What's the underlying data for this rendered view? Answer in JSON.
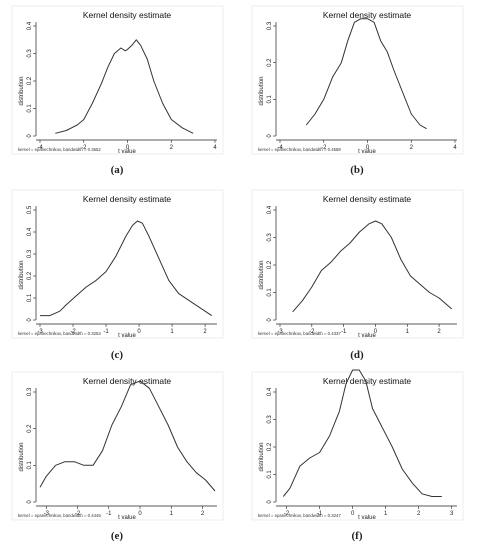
{
  "chart_data": [
    {
      "id": "a",
      "type": "line",
      "title": "Kernel density estimate",
      "xlabel": "t value",
      "ylabel": "distribution",
      "note": "kernel = epanechnikov, bandwidth = 0.3652",
      "xlim": [
        -4,
        4
      ],
      "ylim": [
        0,
        0.4
      ],
      "xticks": [
        -4,
        -2,
        0,
        2,
        4
      ],
      "yticks": [
        0,
        0.1,
        0.2,
        0.3,
        0.4
      ],
      "series": [
        {
          "x": [
            -3.3,
            -2.8,
            -2.3,
            -2.0,
            -1.6,
            -1.2,
            -0.9,
            -0.6,
            -0.3,
            -0.1,
            0.0,
            0.2,
            0.4,
            0.6,
            0.9,
            1.2,
            1.6,
            2.0,
            2.5,
            3.0
          ],
          "y": [
            0.01,
            0.02,
            0.04,
            0.06,
            0.12,
            0.19,
            0.25,
            0.3,
            0.32,
            0.31,
            0.315,
            0.33,
            0.35,
            0.33,
            0.28,
            0.2,
            0.12,
            0.06,
            0.03,
            0.01
          ]
        }
      ],
      "caption": "(a)"
    },
    {
      "id": "b",
      "type": "line",
      "title": "Kernel density estimate",
      "xlabel": "t value",
      "ylabel": "distribution",
      "note": "kernel = epanechnikov, bandwidth = 0.4588",
      "xlim": [
        -4,
        4
      ],
      "ylim": [
        0,
        0.3
      ],
      "xticks": [
        -4,
        -2,
        0,
        2,
        4
      ],
      "yticks": [
        0,
        0.1,
        0.2,
        0.3
      ],
      "series": [
        {
          "x": [
            -2.8,
            -2.4,
            -2.0,
            -1.6,
            -1.2,
            -0.9,
            -0.6,
            -0.3,
            0.0,
            0.3,
            0.6,
            0.9,
            1.2,
            1.6,
            2.0,
            2.4,
            2.7
          ],
          "y": [
            0.03,
            0.06,
            0.1,
            0.16,
            0.2,
            0.26,
            0.31,
            0.32,
            0.32,
            0.31,
            0.26,
            0.23,
            0.18,
            0.12,
            0.06,
            0.03,
            0.02
          ]
        }
      ],
      "caption": "(b)"
    },
    {
      "id": "c",
      "type": "line",
      "title": "Kernel density estimate",
      "xlabel": "t value",
      "ylabel": "distribution",
      "note": "kernel = epanechnikov, bandwidth = 0.3253",
      "xlim": [
        -3,
        2.3
      ],
      "ylim": [
        0,
        0.5
      ],
      "xticks": [
        -3,
        -2,
        -1,
        0,
        1,
        2
      ],
      "yticks": [
        0,
        0.1,
        0.2,
        0.3,
        0.4,
        0.5
      ],
      "series": [
        {
          "x": [
            -3.0,
            -2.7,
            -2.4,
            -2.2,
            -1.9,
            -1.6,
            -1.3,
            -1.0,
            -0.7,
            -0.4,
            -0.2,
            -0.05,
            0.1,
            0.3,
            0.6,
            0.9,
            1.2,
            1.5,
            1.8,
            2.2
          ],
          "y": [
            0.02,
            0.02,
            0.04,
            0.07,
            0.11,
            0.15,
            0.18,
            0.22,
            0.29,
            0.38,
            0.43,
            0.45,
            0.44,
            0.38,
            0.28,
            0.18,
            0.12,
            0.09,
            0.06,
            0.02
          ]
        }
      ],
      "caption": "(c)"
    },
    {
      "id": "d",
      "type": "line",
      "title": "Kernel density estimate",
      "xlabel": "t value",
      "ylabel": "distribution",
      "note": "kernel = epanechnikov, bandwidth = 0.4337",
      "xlim": [
        -3,
        2.5
      ],
      "ylim": [
        0,
        0.4
      ],
      "xticks": [
        -3,
        -2,
        -1,
        0,
        1,
        2
      ],
      "yticks": [
        0,
        0.1,
        0.2,
        0.3,
        0.4
      ],
      "series": [
        {
          "x": [
            -2.6,
            -2.3,
            -2.0,
            -1.7,
            -1.4,
            -1.1,
            -0.8,
            -0.5,
            -0.2,
            0.0,
            0.2,
            0.5,
            0.8,
            1.1,
            1.4,
            1.7,
            2.0,
            2.4
          ],
          "y": [
            0.03,
            0.07,
            0.12,
            0.18,
            0.21,
            0.25,
            0.28,
            0.32,
            0.35,
            0.36,
            0.35,
            0.3,
            0.22,
            0.16,
            0.13,
            0.1,
            0.08,
            0.04
          ]
        }
      ],
      "caption": "(d)"
    },
    {
      "id": "e",
      "type": "line",
      "title": "Kernel density estimate",
      "xlabel": "t value",
      "ylabel": "distribution",
      "note": "kernel = epanechnikov, bandwidth = 0.4445",
      "xlim": [
        -3.2,
        2.4
      ],
      "ylim": [
        0,
        0.3
      ],
      "xticks": [
        -3,
        -2,
        -1,
        0,
        1,
        2
      ],
      "yticks": [
        0,
        0.1,
        0.2,
        0.3
      ],
      "series": [
        {
          "x": [
            -3.2,
            -3.0,
            -2.7,
            -2.4,
            -2.1,
            -1.8,
            -1.5,
            -1.2,
            -0.9,
            -0.6,
            -0.3,
            0.0,
            0.3,
            0.6,
            0.9,
            1.2,
            1.5,
            1.8,
            2.1,
            2.4
          ],
          "y": [
            0.04,
            0.07,
            0.1,
            0.11,
            0.11,
            0.1,
            0.1,
            0.14,
            0.21,
            0.26,
            0.32,
            0.33,
            0.31,
            0.26,
            0.21,
            0.15,
            0.11,
            0.08,
            0.06,
            0.03
          ]
        }
      ],
      "caption": "(e)"
    },
    {
      "id": "f",
      "type": "line",
      "title": "Kernel density estimate",
      "xlabel": "t value",
      "ylabel": "distribution",
      "note": "kernel = epanechnikov, bandwidth = 0.3247",
      "xlim": [
        -2.2,
        3.1
      ],
      "ylim": [
        0,
        0.4
      ],
      "xticks": [
        -2,
        -1,
        0,
        1,
        2,
        3
      ],
      "yticks": [
        0,
        0.1,
        0.2,
        0.3,
        0.4
      ],
      "series": [
        {
          "x": [
            -2.1,
            -1.9,
            -1.6,
            -1.3,
            -1.0,
            -0.7,
            -0.4,
            -0.2,
            0.0,
            0.2,
            0.4,
            0.6,
            0.9,
            1.2,
            1.5,
            1.8,
            2.1,
            2.4,
            2.7
          ],
          "y": [
            0.02,
            0.05,
            0.13,
            0.16,
            0.18,
            0.24,
            0.33,
            0.43,
            0.48,
            0.48,
            0.44,
            0.34,
            0.27,
            0.2,
            0.12,
            0.07,
            0.03,
            0.02,
            0.02
          ]
        }
      ],
      "caption": "(f)"
    }
  ]
}
